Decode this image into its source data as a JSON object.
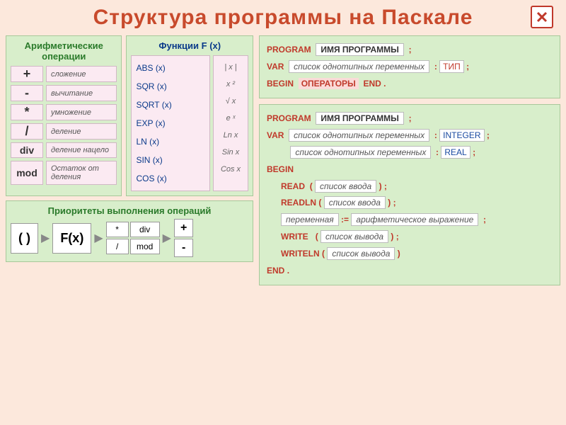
{
  "title": "Структура  программы  на  Паскале",
  "arith": {
    "title": "Арифметические\nоперации",
    "ops": [
      {
        "sym": "+",
        "desc": "сложение"
      },
      {
        "sym": "-",
        "desc": "вычитание"
      },
      {
        "sym": "*",
        "desc": "умножение"
      },
      {
        "sym": "/",
        "desc": "деление"
      },
      {
        "sym": "div",
        "desc": "деление нацело"
      },
      {
        "sym": "mod",
        "desc": "Остаток от деления"
      }
    ]
  },
  "func": {
    "title": "Функции  F (x)",
    "items": [
      {
        "name": "ABS (x)",
        "math": "| x |"
      },
      {
        "name": "SQR (x)",
        "math": "x ²"
      },
      {
        "name": "SQRT (x)",
        "math": "√ x"
      },
      {
        "name": "EXP (x)",
        "math": "e ˣ"
      },
      {
        "name": "LN (x)",
        "math": "Ln x"
      },
      {
        "name": "SIN (x)",
        "math": "Sin x"
      },
      {
        "name": "COS (x)",
        "math": "Cos x"
      }
    ]
  },
  "priority": {
    "title": "Приоритеты выполнения операций",
    "p1": "( )",
    "p2": "F(x)",
    "grid": [
      "*",
      "div",
      "/",
      "mod"
    ],
    "last": [
      "+",
      "-"
    ]
  },
  "code1": {
    "l1": {
      "kw": "PROGRAM",
      "box": "ИМЯ ПРОГРАММЫ",
      "end": ";"
    },
    "l2": {
      "kw": "VAR",
      "box": "список однотипных переменных",
      "colon": ":",
      "type": "ТИП",
      "end": ";"
    },
    "l3": {
      "kw1": "BEGIN",
      "op": "ОПЕРАТОРЫ",
      "kw2": "END",
      "end": "."
    }
  },
  "code2": {
    "l1": {
      "kw": "PROGRAM",
      "box": "ИМЯ ПРОГРАММЫ",
      "end": ";"
    },
    "l2": {
      "kw": "VAR",
      "box": "список однотипных переменных",
      "colon": ":",
      "type": "INTEGER",
      "end": ";"
    },
    "l3": {
      "box": "список однотипных переменных",
      "colon": ":",
      "type": "REAL",
      "end": ";"
    },
    "l4": {
      "kw": "BEGIN"
    },
    "l5": {
      "kw": "READ",
      "open": "(",
      "box": "список ввода",
      "close": ")",
      "end": ";"
    },
    "l6": {
      "kw": "READLN",
      "open": "(",
      "box": "список ввода",
      "close": ")",
      "end": ";"
    },
    "l7": {
      "var": "переменная",
      "assign": ":=",
      "expr": "арифметическое выражение",
      "end": ";"
    },
    "l8": {
      "kw": "WRITE",
      "open": "(",
      "box": "список вывода",
      "close": ")",
      "end": ";"
    },
    "l9": {
      "kw": "WRITELN",
      "open": "(",
      "box": "список вывода",
      "close": ")"
    },
    "l10": {
      "kw": "END",
      "end": "."
    }
  },
  "colors": {
    "bg": "#fce8dc",
    "panel": "#d8eecb",
    "pink": "#fbeaf2",
    "kw": "#c0392b",
    "blue": "#0a3a8a",
    "green": "#2a7a2a"
  }
}
